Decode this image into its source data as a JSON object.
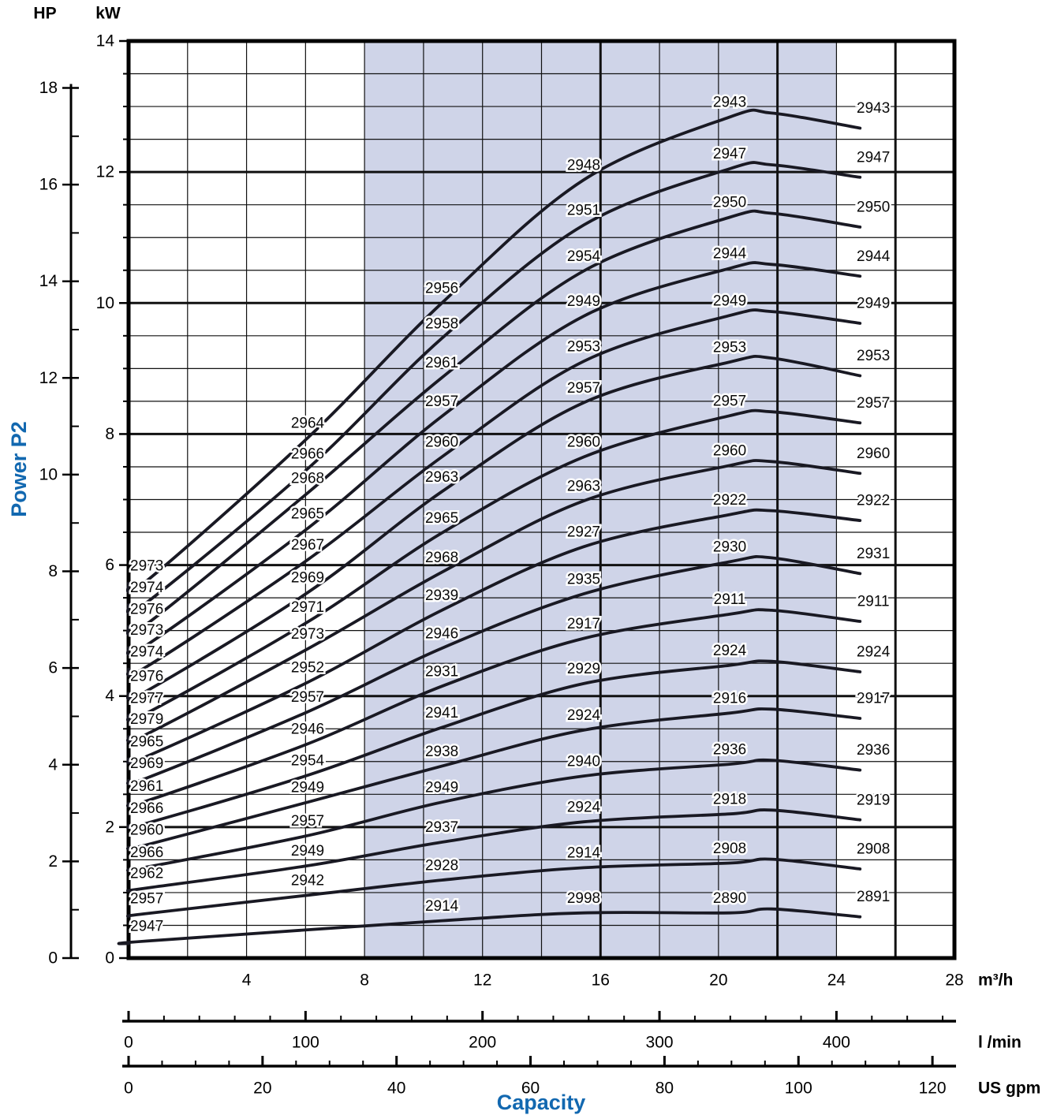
{
  "header": {
    "hp": "HP",
    "kw": "kW"
  },
  "y_axis_label": "Power P2",
  "x_axis_label": "Capacity",
  "axes": {
    "kw_ticks": [
      14,
      12,
      10,
      8,
      6,
      4,
      2,
      0
    ],
    "hp_ticks": [
      18,
      16,
      14,
      12,
      10,
      8,
      6,
      4,
      2,
      0
    ],
    "m3h": {
      "unit": "m³/h",
      "ticks": [
        4,
        8,
        12,
        16,
        20,
        24,
        28
      ]
    },
    "lmin": {
      "unit": "l /min",
      "ticks": [
        0,
        100,
        200,
        300,
        400
      ]
    },
    "usgpm": {
      "unit": "US gpm",
      "ticks": [
        0,
        20,
        40,
        60,
        80,
        100,
        120
      ]
    }
  },
  "colors": {
    "accent_blue": "#1268b0",
    "band": "#cfd4e8",
    "curve": "#191923",
    "grid": "#111111",
    "border": "#000000"
  },
  "chart_data": {
    "type": "line",
    "title": "",
    "xlabel": "Capacity",
    "ylabel": "Power P2",
    "x_units": [
      "m³/h",
      "l /min",
      "US gpm"
    ],
    "y_units": [
      "kW",
      "HP"
    ],
    "xlim_m3h": [
      0,
      28
    ],
    "ylim_kw": [
      0,
      14
    ],
    "ylim_hp": [
      0,
      18
    ],
    "grid": "on",
    "shaded_band_m3h": [
      8,
      24
    ],
    "vline_step_m3h": 2,
    "hline_step_kw": 0.5,
    "thick_vlines_m3h": [
      16,
      22,
      26
    ],
    "thick_hlines_kw": [
      2,
      4,
      6,
      8,
      10,
      12
    ],
    "lmin_per_m3h": 16.667,
    "usgpm_per_m3h": 4.403,
    "curve_end_m3h": 24.8,
    "series": [
      {
        "name": "2943",
        "points": [
          [
            0.62,
            5.98,
            "2973"
          ],
          [
            6.07,
            8.16,
            "2964"
          ],
          [
            10.62,
            10.22,
            "2956"
          ],
          [
            15.43,
            12.1,
            "2948"
          ],
          [
            20.38,
            13.06,
            "2943"
          ],
          [
            25.25,
            12.97,
            "2943"
          ]
        ]
      },
      {
        "name": "2947",
        "points": [
          [
            0.62,
            5.65,
            "2974"
          ],
          [
            6.07,
            7.69,
            "2966"
          ],
          [
            10.62,
            9.68,
            "2958"
          ],
          [
            15.43,
            11.41,
            "2951"
          ],
          [
            20.38,
            12.27,
            "2947"
          ],
          [
            25.25,
            12.22,
            "2947"
          ]
        ]
      },
      {
        "name": "2950",
        "points": [
          [
            0.62,
            5.32,
            "2976"
          ],
          [
            6.07,
            7.32,
            "2968"
          ],
          [
            10.62,
            9.08,
            "2961"
          ],
          [
            15.43,
            10.71,
            "2954"
          ],
          [
            20.38,
            11.53,
            "2950"
          ],
          [
            25.25,
            11.46,
            "2950"
          ]
        ]
      },
      {
        "name": "2944",
        "points": [
          [
            0.62,
            5.0,
            "2973"
          ],
          [
            6.07,
            6.78,
            "2965"
          ],
          [
            10.62,
            8.49,
            "2957"
          ],
          [
            15.43,
            10.02,
            "2949"
          ],
          [
            20.38,
            10.75,
            "2944"
          ],
          [
            25.25,
            10.71,
            "2944"
          ]
        ]
      },
      {
        "name": "2949",
        "points": [
          [
            0.62,
            4.67,
            "2974"
          ],
          [
            6.07,
            6.3,
            "2967"
          ],
          [
            10.62,
            7.87,
            "2960"
          ],
          [
            15.43,
            9.33,
            "2953"
          ],
          [
            20.38,
            10.03,
            "2949"
          ],
          [
            25.25,
            9.99,
            "2949"
          ]
        ]
      },
      {
        "name": "2953",
        "points": [
          [
            0.62,
            4.3,
            "2976"
          ],
          [
            6.07,
            5.8,
            "2969"
          ],
          [
            10.62,
            7.34,
            "2963"
          ],
          [
            15.43,
            8.7,
            "2957"
          ],
          [
            20.38,
            9.32,
            "2953"
          ],
          [
            25.25,
            9.19,
            "2953"
          ]
        ]
      },
      {
        "name": "2957",
        "points": [
          [
            0.62,
            3.96,
            "2977"
          ],
          [
            6.07,
            5.35,
            "2971"
          ],
          [
            10.62,
            6.71,
            "2965"
          ],
          [
            15.43,
            7.87,
            "2960"
          ],
          [
            20.38,
            8.5,
            "2957"
          ],
          [
            25.25,
            8.47,
            "2957"
          ]
        ]
      },
      {
        "name": "2960",
        "points": [
          [
            0.62,
            3.64,
            "2979"
          ],
          [
            6.07,
            4.94,
            "2973"
          ],
          [
            10.62,
            6.11,
            "2968"
          ],
          [
            15.43,
            7.2,
            "2963"
          ],
          [
            20.38,
            7.74,
            "2960"
          ],
          [
            25.25,
            7.7,
            "2960"
          ]
        ]
      },
      {
        "name": "2922",
        "points": [
          [
            0.62,
            3.3,
            "2965"
          ],
          [
            6.07,
            4.43,
            "2952"
          ],
          [
            10.62,
            5.53,
            "2939"
          ],
          [
            15.43,
            6.5,
            "2927"
          ],
          [
            20.38,
            6.99,
            "2922"
          ],
          [
            25.25,
            6.98,
            "2922"
          ]
        ]
      },
      {
        "name": "2931",
        "points": [
          [
            0.62,
            2.97,
            "2969"
          ],
          [
            6.07,
            3.98,
            "2957"
          ],
          [
            10.62,
            4.95,
            "2946"
          ],
          [
            15.43,
            5.78,
            "2935"
          ],
          [
            20.38,
            6.27,
            "2930"
          ],
          [
            25.25,
            6.17,
            "2931"
          ]
        ]
      },
      {
        "name": "2911",
        "points": [
          [
            0.62,
            2.62,
            "2961"
          ],
          [
            6.07,
            3.49,
            "2946"
          ],
          [
            10.62,
            4.37,
            "2931"
          ],
          [
            15.43,
            5.1,
            "2917"
          ],
          [
            20.38,
            5.47,
            "2911"
          ],
          [
            25.25,
            5.44,
            "2911"
          ]
        ]
      },
      {
        "name": "2924",
        "points": [
          [
            0.62,
            2.28,
            "2966"
          ],
          [
            6.07,
            3.01,
            "2954"
          ],
          [
            10.62,
            3.74,
            "2941"
          ],
          [
            15.43,
            4.41,
            "2929"
          ],
          [
            20.38,
            4.69,
            "2924"
          ],
          [
            25.25,
            4.67,
            "2924"
          ]
        ]
      },
      {
        "name": "2917",
        "points": [
          [
            0.62,
            1.95,
            "2960"
          ],
          [
            6.07,
            2.6,
            "2949"
          ],
          [
            10.62,
            3.15,
            "2938"
          ],
          [
            15.43,
            3.7,
            "2924"
          ],
          [
            20.38,
            3.96,
            "2916"
          ],
          [
            25.25,
            3.96,
            "2917"
          ]
        ]
      },
      {
        "name": "2936",
        "points": [
          [
            0.62,
            1.61,
            "2966"
          ],
          [
            6.07,
            2.09,
            "2957"
          ],
          [
            10.62,
            2.6,
            "2949"
          ],
          [
            15.43,
            3.0,
            "2940"
          ],
          [
            20.38,
            3.18,
            "2936"
          ],
          [
            25.25,
            3.17,
            "2936"
          ]
        ]
      },
      {
        "name": "2919",
        "points": [
          [
            0.62,
            1.29,
            "2962"
          ],
          [
            6.07,
            1.63,
            "2949"
          ],
          [
            10.62,
            1.99,
            "2937"
          ],
          [
            15.43,
            2.3,
            "2924"
          ],
          [
            20.38,
            2.42,
            "2918"
          ],
          [
            25.25,
            2.41,
            "2919"
          ]
        ]
      },
      {
        "name": "2908",
        "points": [
          [
            0.62,
            0.9,
            "2957"
          ],
          [
            6.07,
            1.18,
            "2942"
          ],
          [
            10.62,
            1.41,
            "2928"
          ],
          [
            15.43,
            1.6,
            "2914"
          ],
          [
            20.38,
            1.67,
            "2908"
          ],
          [
            25.25,
            1.66,
            "2908"
          ]
        ]
      },
      {
        "name": "2891",
        "points": [
          [
            0.62,
            0.48,
            "2947"
          ],
          [
            10.62,
            0.79,
            "2914"
          ],
          [
            15.43,
            0.91,
            "2998"
          ],
          [
            20.38,
            0.91,
            "2890"
          ],
          [
            25.25,
            0.93,
            "2891"
          ]
        ]
      }
    ]
  }
}
